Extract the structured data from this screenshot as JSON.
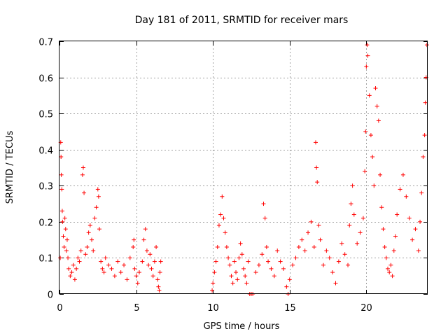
{
  "chart_data": {
    "type": "scatter",
    "title": "Day 181 of 2011, SRMTID for receiver mars",
    "xlabel": "GPS time / hours",
    "ylabel": "SRMTID / TECUs",
    "xlim": [
      0,
      24
    ],
    "ylim": [
      0,
      0.7
    ],
    "xticks": [
      0,
      5,
      10,
      15,
      20
    ],
    "xtick_labels": [
      "0",
      "5",
      "10",
      "15",
      "20"
    ],
    "yticks": [
      0,
      0.1,
      0.2,
      0.3,
      0.4,
      0.5,
      0.6,
      0.7
    ],
    "ytick_labels": [
      "0",
      "0.1",
      "0.2",
      "0.3",
      "0.4",
      "0.5",
      "0.6",
      "0.7"
    ],
    "grid": true,
    "marker": "+",
    "color": "#ff0000",
    "series": [
      {
        "name": "SRMTID",
        "points": [
          [
            0.05,
            0.1
          ],
          [
            0.08,
            0.42
          ],
          [
            0.1,
            0.38
          ],
          [
            0.12,
            0.33
          ],
          [
            0.15,
            0.29
          ],
          [
            0.18,
            0.23
          ],
          [
            0.2,
            0.2
          ],
          [
            0.25,
            0.16
          ],
          [
            0.3,
            0.13
          ],
          [
            0.35,
            0.21
          ],
          [
            0.4,
            0.18
          ],
          [
            0.45,
            0.12
          ],
          [
            0.5,
            0.15
          ],
          [
            0.55,
            0.1
          ],
          [
            0.6,
            0.07
          ],
          [
            0.7,
            0.05
          ],
          [
            0.8,
            0.06
          ],
          [
            0.9,
            0.08
          ],
          [
            1.0,
            0.04
          ],
          [
            1.1,
            0.07
          ],
          [
            1.2,
            0.1
          ],
          [
            1.3,
            0.09
          ],
          [
            1.4,
            0.12
          ],
          [
            1.5,
            0.33
          ],
          [
            1.55,
            0.35
          ],
          [
            1.6,
            0.28
          ],
          [
            1.7,
            0.11
          ],
          [
            1.8,
            0.13
          ],
          [
            1.9,
            0.17
          ],
          [
            2.0,
            0.19
          ],
          [
            2.1,
            0.15
          ],
          [
            2.2,
            0.12
          ],
          [
            2.3,
            0.21
          ],
          [
            2.4,
            0.24
          ],
          [
            2.5,
            0.29
          ],
          [
            2.55,
            0.27
          ],
          [
            2.6,
            0.18
          ],
          [
            2.7,
            0.09
          ],
          [
            2.8,
            0.07
          ],
          [
            2.9,
            0.06
          ],
          [
            3.0,
            0.1
          ],
          [
            3.2,
            0.08
          ],
          [
            3.4,
            0.07
          ],
          [
            3.6,
            0.05
          ],
          [
            3.8,
            0.09
          ],
          [
            4.0,
            0.06
          ],
          [
            4.2,
            0.08
          ],
          [
            4.4,
            0.04
          ],
          [
            4.6,
            0.1
          ],
          [
            4.8,
            0.13
          ],
          [
            4.85,
            0.15
          ],
          [
            4.9,
            0.07
          ],
          [
            5.0,
            0.05
          ],
          [
            5.1,
            0.03
          ],
          [
            5.2,
            0.06
          ],
          [
            5.4,
            0.09
          ],
          [
            5.5,
            0.15
          ],
          [
            5.6,
            0.18
          ],
          [
            5.7,
            0.12
          ],
          [
            5.8,
            0.08
          ],
          [
            5.9,
            0.11
          ],
          [
            6.0,
            0.07
          ],
          [
            6.1,
            0.05
          ],
          [
            6.2,
            0.09
          ],
          [
            6.3,
            0.13
          ],
          [
            6.4,
            0.04
          ],
          [
            6.45,
            0.02
          ],
          [
            6.5,
            0.01
          ],
          [
            6.55,
            0.06
          ],
          [
            6.6,
            0.09
          ],
          [
            9.95,
            0.01
          ],
          [
            10.0,
            0.03
          ],
          [
            10.1,
            0.06
          ],
          [
            10.2,
            0.09
          ],
          [
            10.3,
            0.13
          ],
          [
            10.4,
            0.19
          ],
          [
            10.5,
            0.22
          ],
          [
            10.6,
            0.27
          ],
          [
            10.7,
            0.21
          ],
          [
            10.8,
            0.17
          ],
          [
            10.9,
            0.13
          ],
          [
            11.0,
            0.1
          ],
          [
            11.1,
            0.08
          ],
          [
            11.2,
            0.05
          ],
          [
            11.3,
            0.03
          ],
          [
            11.4,
            0.09
          ],
          [
            11.5,
            0.06
          ],
          [
            11.6,
            0.04
          ],
          [
            11.7,
            0.1
          ],
          [
            11.8,
            0.14
          ],
          [
            11.9,
            0.11
          ],
          [
            12.0,
            0.07
          ],
          [
            12.1,
            0.05
          ],
          [
            12.2,
            0.03
          ],
          [
            12.3,
            0.09
          ],
          [
            12.4,
            0.0
          ],
          [
            12.5,
            0.0
          ],
          [
            12.6,
            0.0
          ],
          [
            12.8,
            0.06
          ],
          [
            13.0,
            0.08
          ],
          [
            13.2,
            0.11
          ],
          [
            13.3,
            0.25
          ],
          [
            13.4,
            0.21
          ],
          [
            13.5,
            0.13
          ],
          [
            13.6,
            0.09
          ],
          [
            13.8,
            0.07
          ],
          [
            14.0,
            0.05
          ],
          [
            14.2,
            0.12
          ],
          [
            14.4,
            0.09
          ],
          [
            14.6,
            0.07
          ],
          [
            14.8,
            0.02
          ],
          [
            14.9,
            0.0
          ],
          [
            15.0,
            0.04
          ],
          [
            15.2,
            0.08
          ],
          [
            15.4,
            0.1
          ],
          [
            15.6,
            0.13
          ],
          [
            15.8,
            0.15
          ],
          [
            16.0,
            0.12
          ],
          [
            16.2,
            0.17
          ],
          [
            16.4,
            0.2
          ],
          [
            16.6,
            0.13
          ],
          [
            16.7,
            0.42
          ],
          [
            16.75,
            0.35
          ],
          [
            16.8,
            0.31
          ],
          [
            16.9,
            0.19
          ],
          [
            17.0,
            0.15
          ],
          [
            17.2,
            0.08
          ],
          [
            17.4,
            0.12
          ],
          [
            17.6,
            0.1
          ],
          [
            17.8,
            0.06
          ],
          [
            18.0,
            0.03
          ],
          [
            18.2,
            0.09
          ],
          [
            18.4,
            0.14
          ],
          [
            18.6,
            0.11
          ],
          [
            18.8,
            0.08
          ],
          [
            18.9,
            0.19
          ],
          [
            19.0,
            0.25
          ],
          [
            19.1,
            0.3
          ],
          [
            19.2,
            0.22
          ],
          [
            19.4,
            0.14
          ],
          [
            19.6,
            0.17
          ],
          [
            19.8,
            0.21
          ],
          [
            19.9,
            0.34
          ],
          [
            19.95,
            0.45
          ],
          [
            20.0,
            0.63
          ],
          [
            20.05,
            0.69
          ],
          [
            20.1,
            0.66
          ],
          [
            20.2,
            0.55
          ],
          [
            20.3,
            0.44
          ],
          [
            20.4,
            0.38
          ],
          [
            20.5,
            0.3
          ],
          [
            20.6,
            0.57
          ],
          [
            20.7,
            0.52
          ],
          [
            20.8,
            0.48
          ],
          [
            20.9,
            0.33
          ],
          [
            21.0,
            0.24
          ],
          [
            21.1,
            0.18
          ],
          [
            21.2,
            0.13
          ],
          [
            21.3,
            0.1
          ],
          [
            21.4,
            0.07
          ],
          [
            21.5,
            0.06
          ],
          [
            21.6,
            0.08
          ],
          [
            21.7,
            0.05
          ],
          [
            21.8,
            0.12
          ],
          [
            21.9,
            0.16
          ],
          [
            22.0,
            0.22
          ],
          [
            22.2,
            0.29
          ],
          [
            22.4,
            0.33
          ],
          [
            22.6,
            0.27
          ],
          [
            22.8,
            0.21
          ],
          [
            23.0,
            0.15
          ],
          [
            23.2,
            0.18
          ],
          [
            23.4,
            0.12
          ],
          [
            23.5,
            0.2
          ],
          [
            23.6,
            0.28
          ],
          [
            23.7,
            0.38
          ],
          [
            23.8,
            0.44
          ],
          [
            23.85,
            0.53
          ],
          [
            23.9,
            0.6
          ],
          [
            23.95,
            0.69
          ]
        ]
      }
    ]
  }
}
